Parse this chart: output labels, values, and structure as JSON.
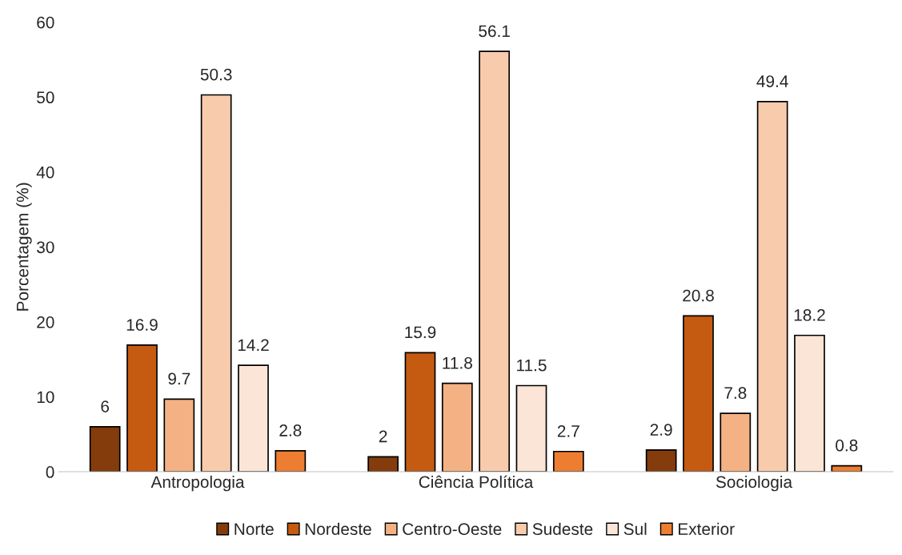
{
  "chart_data": {
    "type": "bar",
    "ylabel": "Porcentagem (%)",
    "categories": [
      "Antropologia",
      "Ciência Política",
      "Sociologia"
    ],
    "series": [
      {
        "name": "Norte",
        "color": "#843c0c",
        "values": [
          6,
          2,
          2.9
        ]
      },
      {
        "name": "Nordeste",
        "color": "#c55a11",
        "values": [
          16.9,
          15.9,
          20.8
        ]
      },
      {
        "name": "Centro-Oeste",
        "color": "#f4b183",
        "values": [
          9.7,
          11.8,
          7.8
        ]
      },
      {
        "name": "Sudeste",
        "color": "#f8cbad",
        "values": [
          50.3,
          56.1,
          49.4
        ]
      },
      {
        "name": "Sul",
        "color": "#fbe5d6",
        "values": [
          14.2,
          11.5,
          18.2
        ]
      },
      {
        "name": "Exterior",
        "color": "#ed7d31",
        "values": [
          2.8,
          2.7,
          0.8
        ]
      }
    ],
    "ylim": [
      0,
      60
    ],
    "yticks": [
      0,
      10,
      20,
      30,
      40,
      50,
      60
    ],
    "data_labels": true,
    "grid": false,
    "legend": "bottom"
  }
}
